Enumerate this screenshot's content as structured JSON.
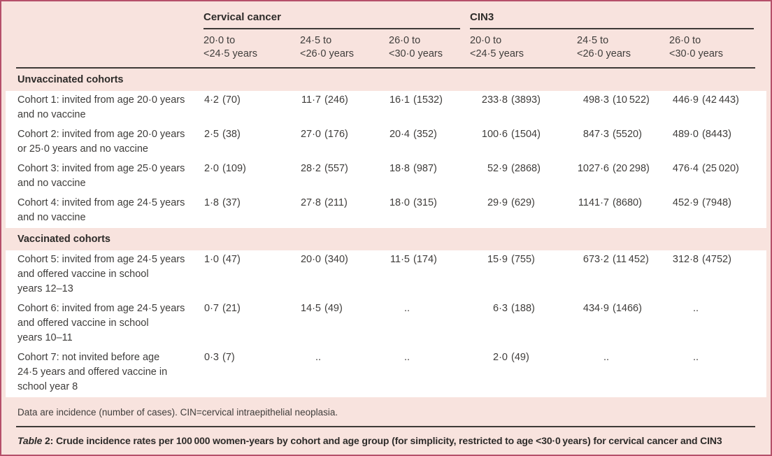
{
  "table": {
    "col_groups": [
      {
        "label": "Cervical cancer"
      },
      {
        "label": "CIN3"
      }
    ],
    "age_headers": [
      "20·0 to\n<24·5 years",
      "24·5 to\n<26·0 years",
      "26·0 to\n<30·0 years",
      "20·0 to\n<24·5 years",
      "24·5 to\n<26·0 years",
      "26·0 to\n<30·0 years"
    ],
    "sections": [
      {
        "title": "Unvaccinated cohorts",
        "rows": [
          {
            "label": "Cohort 1: invited from age 20·0 years\nand no vaccine",
            "cells": [
              {
                "v": "4·2",
                "n": "(70)"
              },
              {
                "v": "11·7",
                "n": "(246)"
              },
              {
                "v": "16·1",
                "n": "(1532)"
              },
              {
                "v": "233·8",
                "n": "(3893)"
              },
              {
                "v": "498·3",
                "n": "(10 522)"
              },
              {
                "v": "446·9",
                "n": "(42 443)"
              }
            ]
          },
          {
            "label": "Cohort 2: invited from age 20·0 years\nor 25·0 years and no vaccine",
            "cells": [
              {
                "v": "2·5",
                "n": "(38)"
              },
              {
                "v": "27·0",
                "n": "(176)"
              },
              {
                "v": "20·4",
                "n": "(352)"
              },
              {
                "v": "100·6",
                "n": "(1504)"
              },
              {
                "v": "847·3",
                "n": "(5520)"
              },
              {
                "v": "489·0",
                "n": "(8443)"
              }
            ]
          },
          {
            "label": "Cohort 3: invited from age 25·0 years\nand no vaccine",
            "cells": [
              {
                "v": "2·0",
                "n": "(109)"
              },
              {
                "v": "28·2",
                "n": "(557)"
              },
              {
                "v": "18·8",
                "n": "(987)"
              },
              {
                "v": "52·9",
                "n": "(2868)"
              },
              {
                "v": "1027·6",
                "n": "(20 298)"
              },
              {
                "v": "476·4",
                "n": "(25 020)"
              }
            ]
          },
          {
            "label": "Cohort 4: invited from age 24·5 years\nand no vaccine",
            "cells": [
              {
                "v": "1·8",
                "n": "(37)"
              },
              {
                "v": "27·8",
                "n": "(211)"
              },
              {
                "v": "18·0",
                "n": "(315)"
              },
              {
                "v": "29·9",
                "n": "(629)"
              },
              {
                "v": "1141·7",
                "n": "(8680)"
              },
              {
                "v": "452·9",
                "n": "(7948)"
              }
            ]
          }
        ]
      },
      {
        "title": "Vaccinated cohorts",
        "rows": [
          {
            "label": "Cohort 5: invited from age 24·5 years\nand offered vaccine in school\nyears 12–13",
            "cells": [
              {
                "v": "1·0",
                "n": "(47)"
              },
              {
                "v": "20·0",
                "n": "(340)"
              },
              {
                "v": "11·5",
                "n": "(174)"
              },
              {
                "v": "15·9",
                "n": "(755)"
              },
              {
                "v": "673·2",
                "n": "(11 452)"
              },
              {
                "v": "312·8",
                "n": "(4752)"
              }
            ]
          },
          {
            "label": "Cohort 6: invited from age 24·5 years\nand offered vaccine in school\nyears 10–11",
            "cells": [
              {
                "v": "0·7",
                "n": "(21)"
              },
              {
                "v": "14·5",
                "n": "(49)"
              },
              {
                "v": "..",
                "n": ""
              },
              {
                "v": "6·3",
                "n": "(188)"
              },
              {
                "v": "434·9",
                "n": "(1466)"
              },
              {
                "v": "..",
                "n": ""
              }
            ]
          },
          {
            "label": "Cohort 7: not invited before age\n24·5 years and offered vaccine in\nschool year 8",
            "cells": [
              {
                "v": "0·3",
                "n": "(7)"
              },
              {
                "v": "..",
                "n": ""
              },
              {
                "v": "..",
                "n": ""
              },
              {
                "v": "2·0",
                "n": "(49)"
              },
              {
                "v": "..",
                "n": ""
              },
              {
                "v": "..",
                "n": ""
              }
            ]
          }
        ]
      }
    ],
    "footnote": "Data are incidence (number of cases). CIN=cervical intraepithelial neoplasia.",
    "caption_word": "Table",
    "caption_number": " 2: ",
    "caption_text": "Crude incidence rates per 100 000 women-years by cohort and age group (for simplicity, restricted to age <30·0 years) for cervical cancer and CIN3"
  }
}
